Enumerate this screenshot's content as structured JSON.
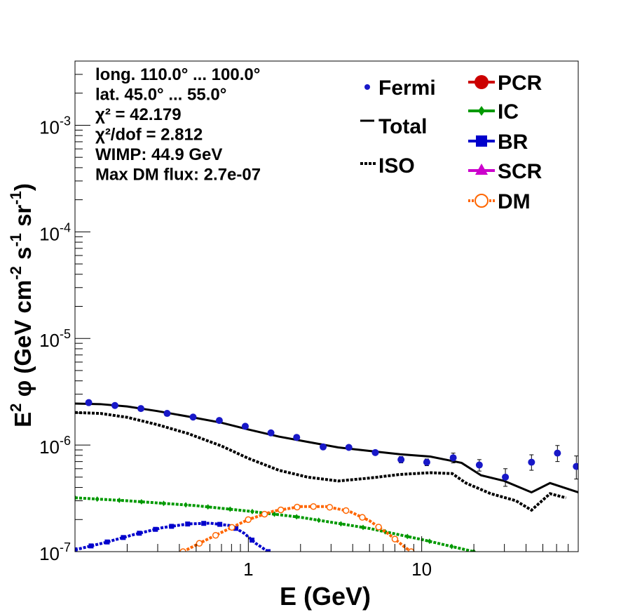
{
  "chart_data": {
    "type": "scatter",
    "title": "",
    "xlabel": "E (GeV)",
    "ylabel_main": "E",
    "ylabel_sup": "2",
    "ylabel_rest": " φ (GeV cm",
    "ylabel_sup2": "-2",
    "ylabel_rest2": " s",
    "ylabel_sup3": "-1",
    "ylabel_rest3": " sr",
    "ylabel_sup4": "-1",
    "ylabel_rest4": ")",
    "xscale": "log",
    "yscale": "log",
    "xlim": [
      0.1,
      80
    ],
    "ylim": [
      1e-07,
      0.004
    ],
    "x_ticks": [
      {
        "value": 1,
        "label": "1"
      },
      {
        "value": 10,
        "label": "10"
      }
    ],
    "y_ticks": [
      {
        "value": 1e-07,
        "base": "10",
        "exp": "-7"
      },
      {
        "value": 1e-06,
        "base": "10",
        "exp": "-6"
      },
      {
        "value": 1e-05,
        "base": "10",
        "exp": "-5"
      },
      {
        "value": 0.0001,
        "base": "10",
        "exp": "-4"
      },
      {
        "value": 0.001,
        "base": "10",
        "exp": "-3"
      }
    ],
    "info_text": [
      "long. 110.0° ... 100.0°",
      "lat. 45.0° ... 55.0°",
      "χ² = 42.179",
      "χ²/dof = 2.812",
      "WIMP: 44.9 GeV",
      "Max DM flux: 2.7e-07"
    ],
    "legend_left": [
      {
        "label": "Fermi",
        "style": "marker",
        "color": "#1818c8"
      },
      {
        "label": "Total",
        "style": "solid",
        "color": "#000000"
      },
      {
        "label": "ISO",
        "style": "dotted",
        "color": "#000000"
      }
    ],
    "legend_right": [
      {
        "label": "PCR",
        "style": "circle",
        "color": "#cc0000"
      },
      {
        "label": "IC",
        "style": "diamond",
        "color": "#009900"
      },
      {
        "label": "BR",
        "style": "square",
        "color": "#0000cc"
      },
      {
        "label": "SCR",
        "style": "triangle",
        "color": "#cc00cc"
      },
      {
        "label": "DM",
        "style": "open-circle",
        "color": "#ff6600"
      }
    ],
    "fermi": {
      "name": "Fermi",
      "color": "#1818c8",
      "x": [
        0.12,
        0.17,
        0.24,
        0.34,
        0.48,
        0.68,
        0.96,
        1.35,
        1.9,
        2.7,
        3.8,
        5.4,
        7.6,
        10.7,
        15.2,
        21.5,
        30.4,
        43,
        60.7,
        78
      ],
      "y": [
        2.5e-06,
        2.35e-06,
        2.2e-06,
        1.98e-06,
        1.83e-06,
        1.7e-06,
        1.5e-06,
        1.3e-06,
        1.18e-06,
        9.6e-07,
        9.5e-07,
        8.5e-07,
        7.3e-07,
        6.9e-07,
        7.6e-07,
        6.5e-07,
        5e-07,
        6.9e-07,
        8.4e-07,
        6.3e-07
      ],
      "err_lo": [
        0,
        0,
        0,
        0,
        0,
        0,
        0,
        0,
        0,
        0,
        0,
        0,
        5e-08,
        5e-08,
        8e-08,
        8e-08,
        9e-08,
        1.1e-07,
        1.4e-07,
        1.5e-07
      ],
      "err_hi": [
        0,
        0,
        0,
        0,
        0,
        0,
        0,
        0,
        0,
        0,
        0,
        0,
        5e-08,
        5e-08,
        8e-08,
        8e-08,
        1e-07,
        1.2e-07,
        1.5e-07,
        1.6e-07
      ]
    },
    "series": [
      {
        "name": "Total",
        "style": "solid",
        "color": "#000000",
        "x": [
          0.1,
          0.14,
          0.2,
          0.3,
          0.45,
          0.7,
          1.0,
          1.5,
          2.2,
          3.3,
          5,
          7.5,
          11.2,
          17,
          22,
          30,
          43,
          55,
          80
        ],
        "y": [
          2.45e-06,
          2.42e-06,
          2.3e-06,
          2.08e-06,
          1.85e-06,
          1.62e-06,
          1.4e-06,
          1.2e-06,
          1.07e-06,
          9.5e-07,
          8.8e-07,
          8.2e-07,
          7.8e-07,
          6.8e-07,
          5.2e-07,
          4.6e-07,
          3.6e-07,
          4.4e-07,
          3.6e-07
        ]
      },
      {
        "name": "ISO",
        "style": "dotted",
        "color": "#000000",
        "x": [
          0.1,
          0.14,
          0.2,
          0.3,
          0.45,
          0.7,
          1.0,
          1.5,
          2.2,
          3.3,
          5,
          7.5,
          11.2,
          15,
          18,
          25,
          35,
          43,
          55,
          68
        ],
        "y": [
          2.02e-06,
          1.98e-06,
          1.82e-06,
          1.55e-06,
          1.28e-06,
          9.8e-07,
          7.5e-07,
          5.8e-07,
          5e-07,
          4.6e-07,
          4.9e-07,
          5.3e-07,
          5.5e-07,
          5.4e-07,
          4.4e-07,
          3.5e-07,
          3e-07,
          2.45e-07,
          3.5e-07,
          3.2e-07
        ]
      },
      {
        "name": "IC",
        "style": "dotted-marker",
        "color": "#009900",
        "x": [
          0.1,
          0.2,
          0.5,
          1.0,
          2.0,
          5.0,
          10,
          20
        ],
        "y": [
          3.2e-07,
          3e-07,
          2.7e-07,
          2.4e-07,
          2.1e-07,
          1.65e-07,
          1.3e-07,
          1e-07
        ]
      },
      {
        "name": "BR",
        "style": "dotted-marker",
        "color": "#0000cc",
        "x": [
          0.1,
          0.15,
          0.22,
          0.32,
          0.45,
          0.6,
          0.8,
          0.95,
          1.1,
          1.3
        ],
        "y": [
          1.04e-07,
          1.22e-07,
          1.45e-07,
          1.68e-07,
          1.82e-07,
          1.85e-07,
          1.75e-07,
          1.48e-07,
          1.2e-07,
          1e-07
        ]
      },
      {
        "name": "DM",
        "style": "dotted-marker",
        "color": "#ff6600",
        "x": [
          0.42,
          0.55,
          0.75,
          1.0,
          1.4,
          2.0,
          2.8,
          3.8,
          5.0,
          6.5,
          8.0,
          8.7
        ],
        "y": [
          1e-07,
          1.25e-07,
          1.6e-07,
          2e-07,
          2.4e-07,
          2.65e-07,
          2.65e-07,
          2.4e-07,
          1.95e-07,
          1.45e-07,
          1.1e-07,
          1e-07
        ]
      }
    ]
  }
}
